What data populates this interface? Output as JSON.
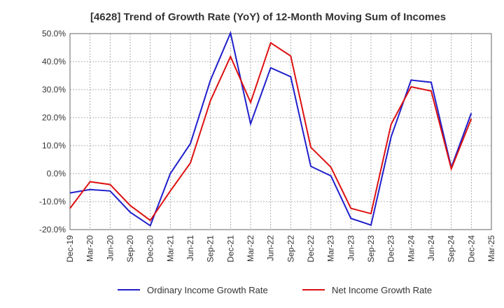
{
  "chart_data": {
    "type": "line",
    "title": "[4628]  Trend of Growth Rate (YoY) of 12-Month Moving Sum of Incomes",
    "x": [
      "Dec-19",
      "Mar-20",
      "Jun-20",
      "Sep-20",
      "Dec-20",
      "Mar-21",
      "Jun-21",
      "Sep-21",
      "Dec-21",
      "Mar-22",
      "Jun-22",
      "Sep-22",
      "Dec-22",
      "Mar-23",
      "Jun-23",
      "Sep-23",
      "Dec-23",
      "Mar-24",
      "Jun-24",
      "Sep-24",
      "Dec-24",
      "Mar-25"
    ],
    "ylim": [
      -20,
      50
    ],
    "yticks": [
      -20,
      -10,
      0,
      10,
      20,
      30,
      40,
      50
    ],
    "ytick_labels": [
      "-20.0%",
      "-10.0%",
      "0.0%",
      "10.0%",
      "20.0%",
      "30.0%",
      "40.0%",
      "50.0%"
    ],
    "grid": true,
    "legend_position": "bottom",
    "series": [
      {
        "name": "Ordinary Income Growth Rate",
        "color": "#1f1fcc",
        "values": [
          -6.9,
          -5.7,
          -6.2,
          -13.8,
          -18.6,
          0.0,
          10.7,
          33.4,
          50.2,
          17.8,
          37.8,
          34.6,
          2.6,
          -0.8,
          -16.0,
          -18.4,
          13.1,
          33.4,
          32.6,
          2.2,
          21.6,
          null
        ]
      },
      {
        "name": "Net Income Growth Rate",
        "color": "#dd1111",
        "values": [
          -12.4,
          -2.9,
          -3.9,
          -11.4,
          -16.7,
          -6.2,
          3.8,
          26.1,
          41.8,
          25.4,
          46.7,
          42.0,
          9.4,
          2.3,
          -12.4,
          -14.3,
          17.6,
          31.0,
          29.5,
          1.7,
          19.6,
          null
        ]
      }
    ]
  }
}
